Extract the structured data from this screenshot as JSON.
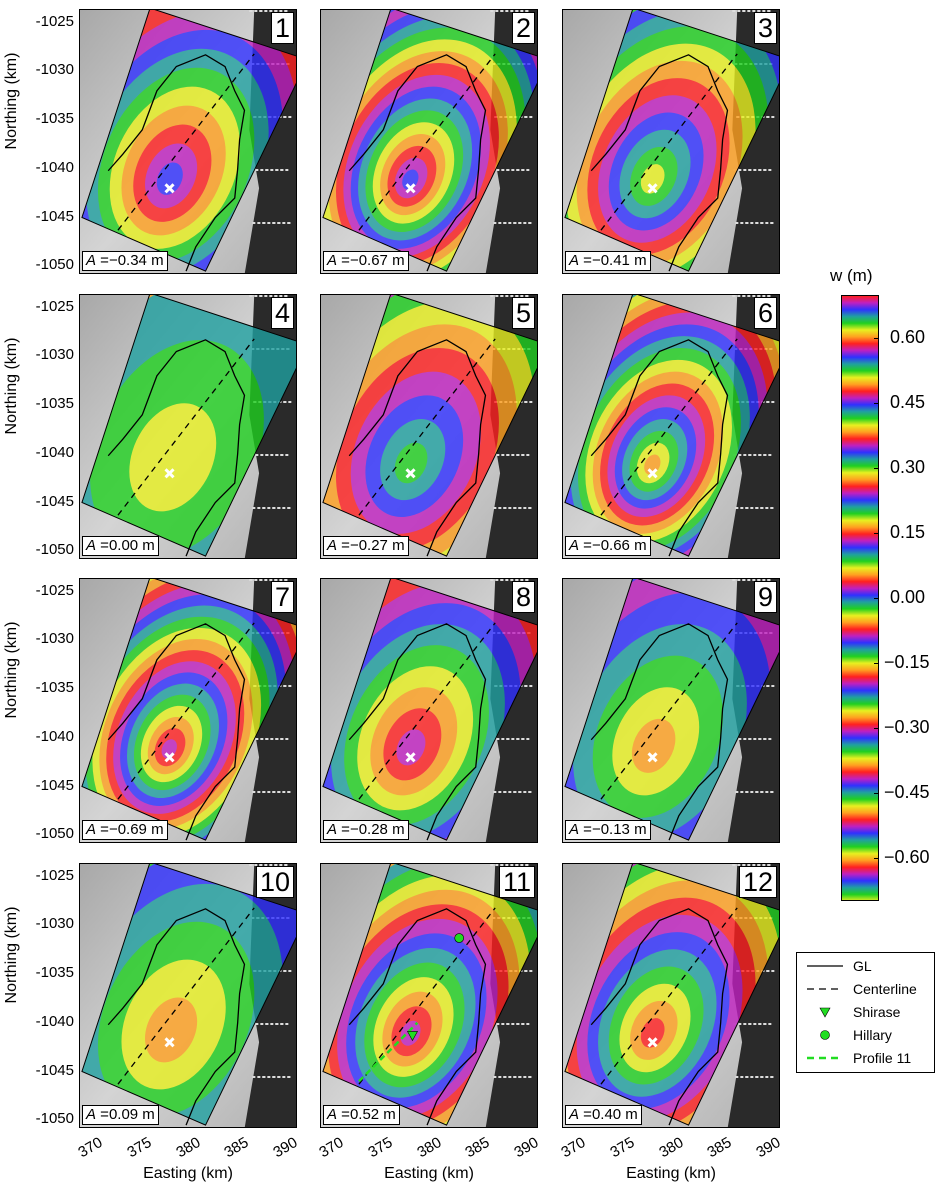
{
  "axes": {
    "ylabel": "Northing (km)",
    "xlabel": "Easting (km)",
    "yticks": [
      "-1025",
      "-1030",
      "-1035",
      "-1040",
      "-1045",
      "-1050"
    ],
    "xticks": [
      "370",
      "375",
      "380",
      "385",
      "390"
    ],
    "xlim": [
      368.1,
      390.5
    ],
    "ylim": [
      -1050.9,
      -1023.7
    ]
  },
  "panels": [
    {
      "number": "1",
      "a_symbol": "A",
      "amplitude": " =−0.34 m",
      "a": -0.34
    },
    {
      "number": "2",
      "a_symbol": "A",
      "amplitude": " =−0.67 m",
      "a": -0.67
    },
    {
      "number": "3",
      "a_symbol": "A",
      "amplitude": " =−0.41 m",
      "a": -0.41
    },
    {
      "number": "4",
      "a_symbol": "A",
      "amplitude": " =0.00 m",
      "a": 0.0
    },
    {
      "number": "5",
      "a_symbol": "A",
      "amplitude": " =−0.27 m",
      "a": -0.27
    },
    {
      "number": "6",
      "a_symbol": "A",
      "amplitude": " =−0.66 m",
      "a": -0.66
    },
    {
      "number": "7",
      "a_symbol": "A",
      "amplitude": " =−0.69 m",
      "a": -0.69
    },
    {
      "number": "8",
      "a_symbol": "A",
      "amplitude": " =−0.28 m",
      "a": -0.28
    },
    {
      "number": "9",
      "a_symbol": "A",
      "amplitude": " =−0.13 m",
      "a": -0.13
    },
    {
      "number": "10",
      "a_symbol": "A",
      "amplitude": " =0.09 m",
      "a": 0.09
    },
    {
      "number": "11",
      "a_symbol": "A",
      "amplitude": " =0.52 m",
      "a": 0.52
    },
    {
      "number": "12",
      "a_symbol": "A",
      "amplitude": " =0.40 m",
      "a": 0.4
    }
  ],
  "colorbar": {
    "title": "w (m)",
    "ticks": [
      "0.60",
      "0.45",
      "0.30",
      "0.15",
      "0.00",
      "−0.15",
      "−0.30",
      "−0.45",
      "−0.60"
    ],
    "tick_values": [
      0.6,
      0.45,
      0.3,
      0.15,
      0,
      -0.15,
      -0.3,
      -0.45,
      -0.6
    ],
    "range": [
      -0.7,
      0.7
    ],
    "cycle_colors": [
      "#ff2020",
      "#c020c0",
      "#3030ff",
      "#20a0a0",
      "#20d020",
      "#e8f020",
      "#ffa020"
    ]
  },
  "legend": {
    "items": [
      {
        "label": "GL",
        "style": "solid-black-line"
      },
      {
        "label": "Centerline",
        "style": "dashed-black-line"
      },
      {
        "label": "Shirase",
        "style": "green-triangle",
        "color": "#22dd22"
      },
      {
        "label": "Hillary",
        "style": "green-circle",
        "color": "#22dd22"
      },
      {
        "label": "Profile 11",
        "style": "dashed-green-line",
        "color": "#22dd22"
      }
    ]
  }
}
